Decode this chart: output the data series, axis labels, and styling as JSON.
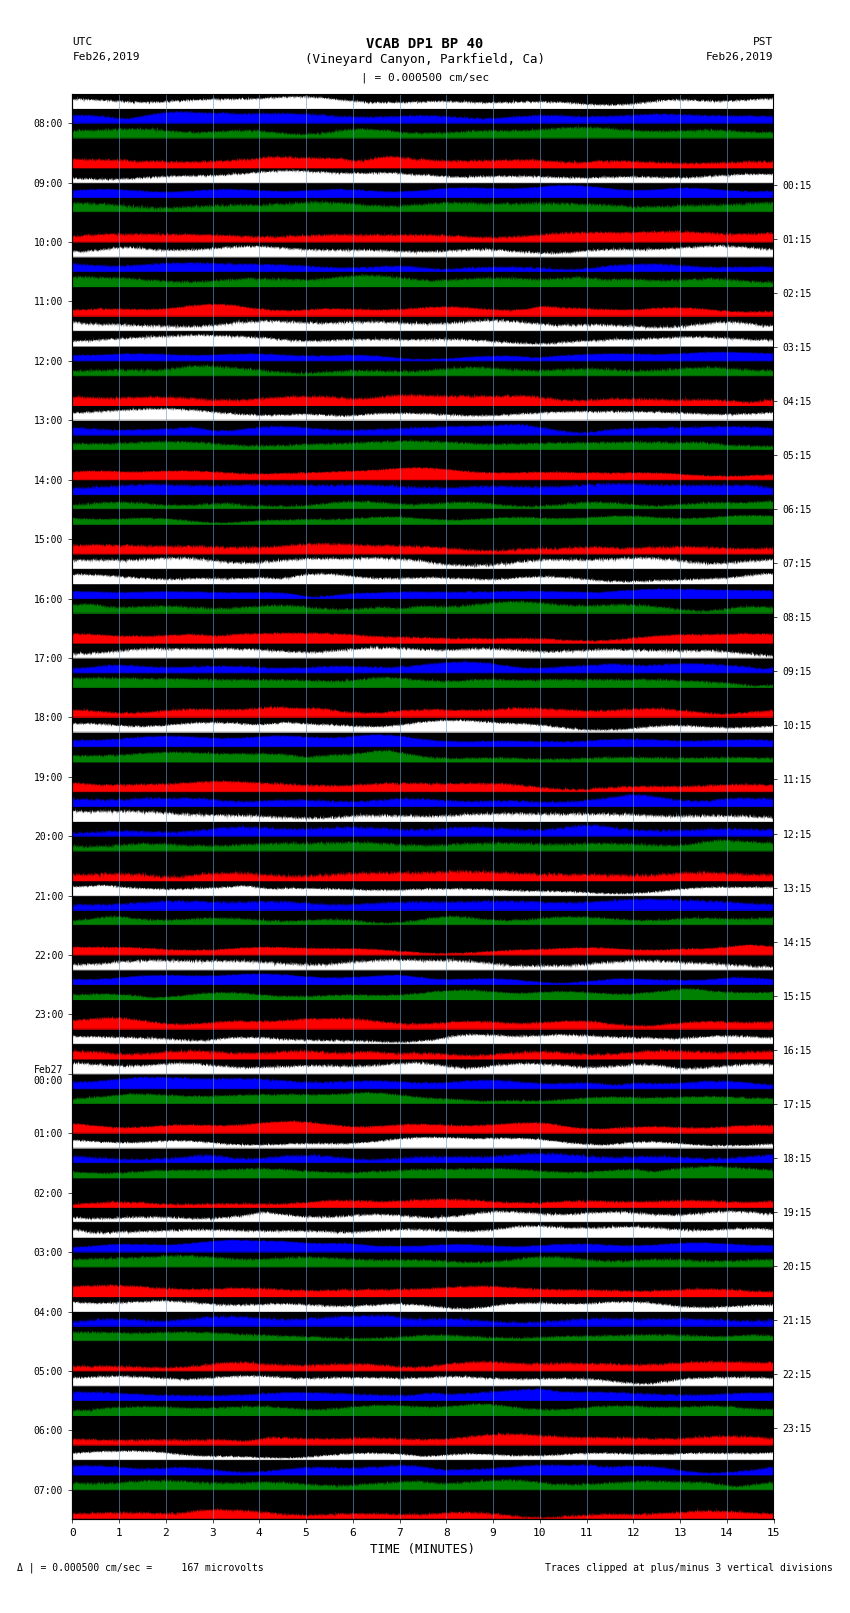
{
  "title_line1": "VCAB DP1 BP 40",
  "title_line2": "(Vineyard Canyon, Parkfield, Ca)",
  "scale_label": "| = 0.000500 cm/sec",
  "left_label_top": "UTC",
  "left_label_date": "Feb26,2019",
  "right_label_top": "PST",
  "right_label_date": "Feb26,2019",
  "bottom_label": "TIME (MINUTES)",
  "footer_left": "Δ | = 0.000500 cm/sec =     167 microvolts",
  "footer_right": "Traces clipped at plus/minus 3 vertical divisions",
  "background_color": "#ffffff",
  "plot_bg_color": "#000000",
  "xlim": [
    0,
    15
  ],
  "xticks": [
    0,
    1,
    2,
    3,
    4,
    5,
    6,
    7,
    8,
    9,
    10,
    11,
    12,
    13,
    14,
    15
  ],
  "left_times": [
    "08:00",
    "09:00",
    "10:00",
    "11:00",
    "12:00",
    "13:00",
    "14:00",
    "15:00",
    "16:00",
    "17:00",
    "18:00",
    "19:00",
    "20:00",
    "21:00",
    "22:00",
    "23:00",
    "Feb27\n00:00",
    "01:00",
    "02:00",
    "03:00",
    "04:00",
    "05:00",
    "06:00",
    "07:00"
  ],
  "right_times": [
    "00:15",
    "01:15",
    "02:15",
    "03:15",
    "04:15",
    "05:15",
    "06:15",
    "07:15",
    "08:15",
    "09:15",
    "10:15",
    "11:15",
    "12:15",
    "13:15",
    "14:15",
    "15:15",
    "16:15",
    "17:15",
    "18:15",
    "19:15",
    "20:15",
    "21:15",
    "22:15",
    "23:15"
  ],
  "n_rows": 24,
  "n_sub": 4,
  "row_color_patterns": [
    [
      "white",
      "blue",
      "green",
      "black"
    ],
    [
      "red",
      "white",
      "blue",
      "green"
    ],
    [
      "black",
      "red",
      "white",
      "blue"
    ],
    [
      "green",
      "black",
      "red",
      "white"
    ],
    [
      "white",
      "blue",
      "green",
      "black"
    ],
    [
      "red",
      "white",
      "blue",
      "green"
    ],
    [
      "black",
      "red",
      "blue",
      "green"
    ],
    [
      "green",
      "black",
      "red",
      "white"
    ],
    [
      "white",
      "blue",
      "green",
      "black"
    ],
    [
      "red",
      "white",
      "blue",
      "green"
    ],
    [
      "black",
      "red",
      "white",
      "blue"
    ],
    [
      "green",
      "black",
      "red",
      "blue"
    ],
    [
      "white",
      "blue",
      "green",
      "black"
    ],
    [
      "red",
      "white",
      "blue",
      "green"
    ],
    [
      "black",
      "red",
      "white",
      "blue"
    ],
    [
      "green",
      "black",
      "red",
      "white"
    ],
    [
      "red",
      "white",
      "blue",
      "green"
    ],
    [
      "black",
      "red",
      "white",
      "blue"
    ],
    [
      "green",
      "black",
      "red",
      "white"
    ],
    [
      "white",
      "blue",
      "green",
      "black"
    ],
    [
      "red",
      "white",
      "blue",
      "green"
    ],
    [
      "black",
      "red",
      "white",
      "blue"
    ],
    [
      "green",
      "black",
      "red",
      "white"
    ],
    [
      "blue",
      "green",
      "black",
      "red"
    ]
  ],
  "seed": 12345,
  "n_points": 4000
}
